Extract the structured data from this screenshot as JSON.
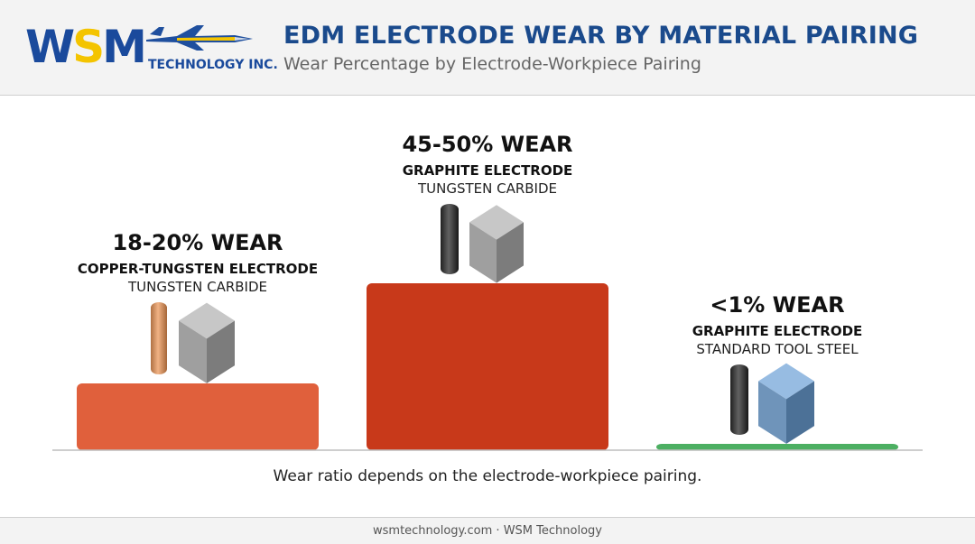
{
  "header": {
    "logo_text": "WSM",
    "logo_subtitle": "TECHNOLOGY INC.",
    "title": "EDM ELECTRODE WEAR BY MATERIAL PAIRING",
    "subtitle": "Wear Percentage by Electrode-Workpiece Pairing"
  },
  "chart_data": {
    "type": "bar",
    "title": "EDM ELECTRODE WEAR BY MATERIAL PAIRING",
    "subtitle": "Wear Percentage by Electrode-Workpiece Pairing",
    "categories": [
      {
        "wear_label": "18-20% WEAR",
        "electrode": "COPPER-TUNGSTEN ELECTRODE",
        "workpiece": "TUNGSTEN CARBIDE"
      },
      {
        "wear_label": "45-50% WEAR",
        "electrode": "GRAPHITE ELECTRODE",
        "workpiece": "TUNGSTEN CARBIDE"
      },
      {
        "wear_label": "<1% WEAR",
        "electrode": "GRAPHITE ELECTRODE",
        "workpiece": "STANDARD TOOL STEEL"
      }
    ],
    "values": [
      19,
      47.5,
      0.8
    ],
    "colors": [
      "#e0603c",
      "#c8391a",
      "#4caf62"
    ],
    "electrode_colors": [
      "#c98a5c",
      "#3a3a3a",
      "#3a3a3a"
    ],
    "workpiece_colors": [
      "#9a9a9a",
      "#9a9a9a",
      "#6a8fb5"
    ],
    "ylim": [
      0,
      50
    ],
    "grid": false,
    "legend": "none"
  },
  "caption": "Wear ratio depends on the electrode-workpiece pairing.",
  "footer": "wsmtechnology.com · WSM Technology"
}
